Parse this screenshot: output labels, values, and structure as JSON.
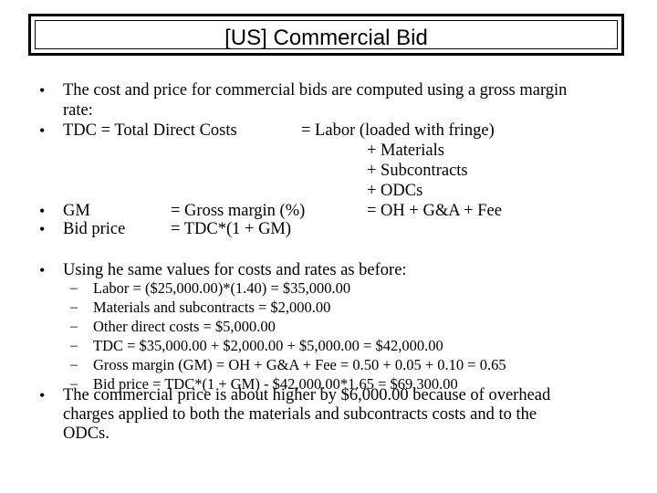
{
  "title": "[US] Commercial Bid",
  "bullet_glyph": "•",
  "dash_glyph": "–",
  "b1": {
    "line1": "The cost and price for commercial bids are computed using a gross margin",
    "line2": "rate:"
  },
  "b2": {
    "term": "TDC = Total Direct Costs",
    "eq1": "= Labor (loaded with fringe)",
    "eq2": "+ Materials",
    "eq3": "+ Subcontracts",
    "eq4": "+ ODCs",
    "eq5": "= OH + G&A + Fee"
  },
  "b3": {
    "term": "GM",
    "def": "= Gross margin (%)"
  },
  "b4": {
    "term": "Bid price",
    "def": "= TDC*(1 + GM)"
  },
  "b5": {
    "text": "Using he same values for costs and rates as before:",
    "subs": [
      "Labor = ($25,000.00)*(1.40) = $35,000.00",
      "Materials and subcontracts = $2,000.00",
      "Other direct costs = $5,000.00",
      "TDC = $35,000.00 + $2,000.00 + $5,000.00 = $42,000.00",
      "Gross margin (GM) = OH + G&A + Fee = 0.50 + 0.05 + 0.10 = 0.65",
      "Bid price = TDC*(1 + GM) - $42,000.00*1.65 = $69,300.00"
    ]
  },
  "b6": {
    "line1": "The commercial price is about higher by $6,000.00 because of overhead",
    "line2": "charges applied to both the materials and subcontracts costs and to the",
    "line3": "ODCs."
  }
}
